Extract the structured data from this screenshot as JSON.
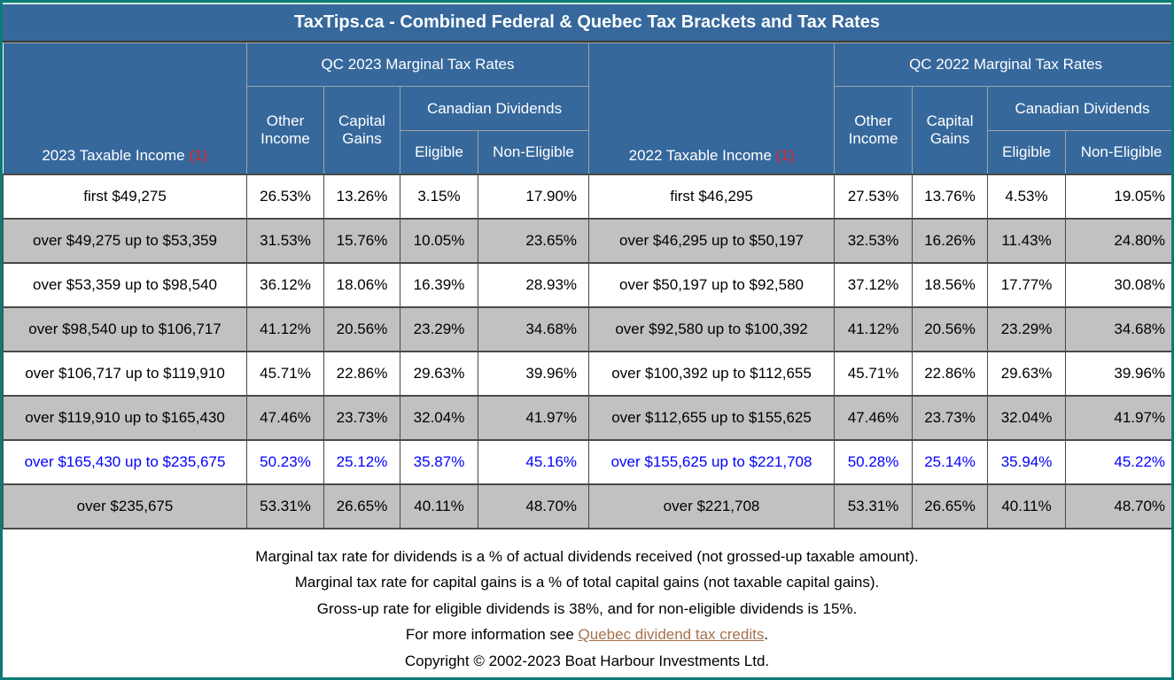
{
  "page_title": "TaxTips.ca - Combined Federal & Quebec Tax Brackets and Tax Rates",
  "colors": {
    "header_blue": "#36689C",
    "border_teal": "#0C7B75",
    "alt_row_gray": "#C1C1C1",
    "highlight_text_blue": "#0101FE",
    "footnote_red": "#EC1C25",
    "link_brown": "#A5714C"
  },
  "shared_headers": {
    "other_income": "Other Income",
    "capital_gains": "Capital Gains",
    "canadian_dividends": "Canadian Dividends",
    "eligible": "Eligible",
    "non_eligible": "Non-Eligible"
  },
  "tables": [
    {
      "income_header": "2023 Taxable Income",
      "footnote_marker": "(1)",
      "rates_header": "QC 2023 Marginal Tax Rates",
      "rows": [
        {
          "income": "first $49,275",
          "other_income": "26.53%",
          "capital_gains": "13.26%",
          "eligible": "3.15%",
          "non_eligible": "17.90%",
          "highlight": false
        },
        {
          "income": "over $49,275 up to $53,359",
          "other_income": "31.53%",
          "capital_gains": "15.76%",
          "eligible": "10.05%",
          "non_eligible": "23.65%",
          "highlight": false
        },
        {
          "income": "over $53,359 up to $98,540",
          "other_income": "36.12%",
          "capital_gains": "18.06%",
          "eligible": "16.39%",
          "non_eligible": "28.93%",
          "highlight": false
        },
        {
          "income": "over $98,540 up to $106,717",
          "other_income": "41.12%",
          "capital_gains": "20.56%",
          "eligible": "23.29%",
          "non_eligible": "34.68%",
          "highlight": false
        },
        {
          "income": "over $106,717 up to $119,910",
          "other_income": "45.71%",
          "capital_gains": "22.86%",
          "eligible": "29.63%",
          "non_eligible": "39.96%",
          "highlight": false
        },
        {
          "income": "over $119,910 up to $165,430",
          "other_income": "47.46%",
          "capital_gains": "23.73%",
          "eligible": "32.04%",
          "non_eligible": "41.97%",
          "highlight": false
        },
        {
          "income": "over $165,430 up to $235,675",
          "other_income": "50.23%",
          "capital_gains": "25.12%",
          "eligible": "35.87%",
          "non_eligible": "45.16%",
          "highlight": true
        },
        {
          "income": "over $235,675",
          "other_income": "53.31%",
          "capital_gains": "26.65%",
          "eligible": "40.11%",
          "non_eligible": "48.70%",
          "highlight": false
        }
      ]
    },
    {
      "income_header": "2022 Taxable Income",
      "footnote_marker": "(1)",
      "rates_header": "QC 2022 Marginal Tax Rates",
      "rows": [
        {
          "income": "first $46,295",
          "other_income": "27.53%",
          "capital_gains": "13.76%",
          "eligible": "4.53%",
          "non_eligible": "19.05%",
          "highlight": false
        },
        {
          "income": "over $46,295 up to $50,197",
          "other_income": "32.53%",
          "capital_gains": "16.26%",
          "eligible": "11.43%",
          "non_eligible": "24.80%",
          "highlight": false
        },
        {
          "income": "over $50,197 up to $92,580",
          "other_income": "37.12%",
          "capital_gains": "18.56%",
          "eligible": "17.77%",
          "non_eligible": "30.08%",
          "highlight": false
        },
        {
          "income": "over $92,580 up to $100,392",
          "other_income": "41.12%",
          "capital_gains": "20.56%",
          "eligible": "23.29%",
          "non_eligible": "34.68%",
          "highlight": false
        },
        {
          "income": "over $100,392 up to $112,655",
          "other_income": "45.71%",
          "capital_gains": "22.86%",
          "eligible": "29.63%",
          "non_eligible": "39.96%",
          "highlight": false
        },
        {
          "income": "over $112,655 up to $155,625",
          "other_income": "47.46%",
          "capital_gains": "23.73%",
          "eligible": "32.04%",
          "non_eligible": "41.97%",
          "highlight": false
        },
        {
          "income": "over $155,625 up to $221,708",
          "other_income": "50.28%",
          "capital_gains": "25.14%",
          "eligible": "35.94%",
          "non_eligible": "45.22%",
          "highlight": true
        },
        {
          "income": "over $221,708",
          "other_income": "53.31%",
          "capital_gains": "26.65%",
          "eligible": "40.11%",
          "non_eligible": "48.70%",
          "highlight": false
        }
      ]
    }
  ],
  "footer": {
    "lines": [
      "Marginal tax rate for dividends is a % of actual dividends received (not grossed-up taxable amount).",
      "Marginal tax rate for capital gains is a % of total capital gains (not taxable capital gains).",
      "Gross-up rate for eligible dividends is 38%, and for non-eligible dividends is 15%."
    ],
    "info_prefix": "For more information see ",
    "link_text": "Quebec dividend tax credits",
    "info_suffix": ".",
    "copyright": "Copyright © 2002-2023 Boat Harbour Investments Ltd."
  }
}
